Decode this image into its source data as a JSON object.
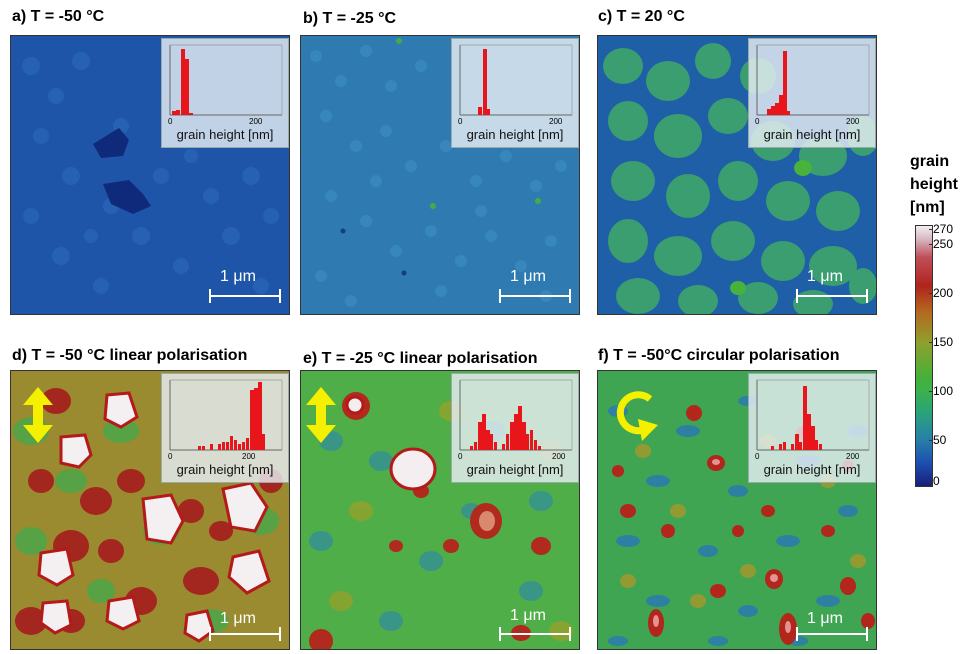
{
  "colors": {
    "highlight_arrow": "#f5f000",
    "histogram_bar": "#e8151b",
    "scale_bar": "#ffffff"
  },
  "panels": [
    {
      "title": "a)  T = -50 °C",
      "inset": {
        "tick_min": "0",
        "tick_max": "200",
        "xlabel": "grain height [nm]"
      },
      "scale": "1 μm",
      "polarisation_icon": null
    },
    {
      "title": "b) T = -25 °C",
      "inset": {
        "tick_min": "0",
        "tick_max": "200",
        "xlabel": "grain height [nm]"
      },
      "scale": "1 μm",
      "polarisation_icon": null
    },
    {
      "title": "c) T = 20 °C",
      "inset": {
        "tick_min": "0",
        "tick_max": "200",
        "xlabel": "grain height [nm]"
      },
      "scale": "1 μm",
      "polarisation_icon": null
    },
    {
      "title": "d) T = -50 °C linear polarisation",
      "inset": {
        "tick_min": "0",
        "tick_max": "200",
        "xlabel": "grain height [nm]"
      },
      "scale": "1 μm",
      "polarisation_icon": "double-arrow-icon"
    },
    {
      "title": "e) T = -25 °C linear polarisation",
      "inset": {
        "tick_min": "0",
        "tick_max": "200",
        "xlabel": "grain height [nm]"
      },
      "scale": "1 μm",
      "polarisation_icon": "double-arrow-icon"
    },
    {
      "title": "f) T = -50°C circular polarisation",
      "inset": {
        "tick_min": "0",
        "tick_max": "200",
        "xlabel": "grain height [nm]"
      },
      "scale": "1 μm",
      "polarisation_icon": "circular-arrow-icon"
    }
  ],
  "colorbar": {
    "title_lines": [
      "grain",
      "height",
      "[nm]"
    ],
    "ticks": [
      "270",
      "250",
      "200",
      "150",
      "100",
      "50",
      "0"
    ]
  }
}
